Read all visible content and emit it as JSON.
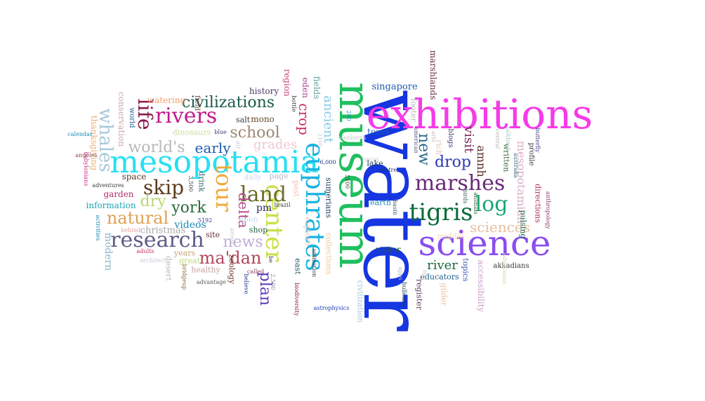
{
  "words": [
    {
      "text": "water",
      "color": "#1536e0"
    },
    {
      "text": "museum",
      "color": "#1fbf5f"
    },
    {
      "text": "exhibitions",
      "color": "#f53be8"
    },
    {
      "text": "science",
      "color": "#8a4df0"
    },
    {
      "text": "mesopotamia",
      "color": "#26e0f2"
    },
    {
      "text": "euphrates",
      "color": "#1ab3e0"
    },
    {
      "text": "center",
      "color": "#c9e047"
    },
    {
      "text": "tour",
      "color": "#f2a93b"
    },
    {
      "text": "tigris",
      "color": "#0a6b3a"
    },
    {
      "text": "marshes",
      "color": "#6a2a7a"
    },
    {
      "text": "rivers",
      "color": "#c21a8a"
    },
    {
      "text": "research",
      "color": "#5c5c8a"
    },
    {
      "text": "land",
      "color": "#6b6b2a"
    },
    {
      "text": "log",
      "color": "#1aa67a"
    },
    {
      "text": "life",
      "color": "#8a1a4a"
    },
    {
      "text": "skip",
      "color": "#5c3a1a"
    },
    {
      "text": "whales",
      "color": "#a8c8d8"
    },
    {
      "text": "civilizations",
      "color": "#1a5a4a"
    },
    {
      "text": "ma'dan",
      "color": "#b3475c"
    },
    {
      "text": "natural",
      "color": "#e0a050"
    },
    {
      "text": "news",
      "color": "#c0b0d8"
    },
    {
      "text": "school",
      "color": "#a08870"
    },
    {
      "text": "world's",
      "color": "#b8b8b8"
    },
    {
      "text": "drop",
      "color": "#2a3ab3"
    },
    {
      "text": "new",
      "color": "#2a6a8a"
    },
    {
      "text": "sciences",
      "color": "#e8c0a0"
    },
    {
      "text": "york",
      "color": "#2a6a3a"
    },
    {
      "text": "dry",
      "color": "#b8d870"
    },
    {
      "text": "early",
      "color": "#1a5ab3"
    },
    {
      "text": "delta",
      "color": "#b3478a"
    },
    {
      "text": "plan",
      "color": "#5a3ab3"
    },
    {
      "text": "ancient",
      "color": "#8ac8e8"
    },
    {
      "text": "crop",
      "color": "#c8306a"
    },
    {
      "text": "grades",
      "color": "#f0c8d0"
    },
    {
      "text": "river",
      "color": "#1a6a3a"
    },
    {
      "text": "visit",
      "color": "#7a2a5a"
    },
    {
      "text": "amnh",
      "color": "#5a2a2a"
    },
    {
      "text": "mesopotamian",
      "color": "#d8b0c8"
    },
    {
      "text": "pm",
      "color": "#2a2a5a"
    },
    {
      "text": "videos",
      "color": "#1a8ab3"
    },
    {
      "text": "christmas",
      "color": "#a8a8a8"
    },
    {
      "text": "modern",
      "color": "#8ab3c8"
    },
    {
      "text": "conservation",
      "color": "#c8a8a8"
    },
    {
      "text": "thanksgiving",
      "color": "#f0b070"
    },
    {
      "text": "information",
      "color": "#1aa6b3"
    },
    {
      "text": "garden",
      "color": "#b3306a"
    },
    {
      "text": "space",
      "color": "#5a3a2a"
    },
    {
      "text": "watering",
      "color": "#f0a070"
    },
    {
      "text": "dinosaurs",
      "color": "#c8e0a0"
    },
    {
      "text": "salt",
      "color": "#3a3a3a"
    },
    {
      "text": "mono",
      "color": "#6a4a2a"
    },
    {
      "text": "history",
      "color": "#4a3a6a"
    },
    {
      "text": "region",
      "color": "#c8407a"
    },
    {
      "text": "eden",
      "color": "#a84090"
    },
    {
      "text": "fields",
      "color": "#60a0a0"
    },
    {
      "text": "singapore",
      "color": "#1a5ab3"
    },
    {
      "text": "tours",
      "color": "#1a5ab3"
    },
    {
      "text": "marshlands",
      "color": "#6a2a4a"
    },
    {
      "text": "footer",
      "color": "#b8b8b8"
    },
    {
      "text": "lake",
      "color": "#1a3a5a"
    },
    {
      "text": "earth",
      "color": "#1a8ab3"
    },
    {
      "text": "middle",
      "color": "#f0d8b0"
    },
    {
      "text": "visitor",
      "color": "#2a5a3a"
    },
    {
      "text": "educators",
      "color": "#1a5a8a"
    },
    {
      "text": "register",
      "color": "#5a3a5a"
    },
    {
      "text": "topics",
      "color": "#3a5ab3"
    },
    {
      "text": "accessibility",
      "color": "#c8a0c8"
    },
    {
      "text": "gilder",
      "color": "#f0c0a0"
    },
    {
      "text": "directions",
      "color": "#b3306a"
    },
    {
      "text": "pulsing",
      "color": "#1a6a4a"
    },
    {
      "text": "written",
      "color": "#3a6a3a"
    },
    {
      "text": "profile",
      "color": "#3a3a3a"
    },
    {
      "text": "blogs",
      "color": "#3a3a6a"
    },
    {
      "text": "rich",
      "color": "#e0c8b0"
    },
    {
      "text": "zoology",
      "color": "#6a3a2a"
    },
    {
      "text": "shop",
      "color": "#1a5a3a"
    },
    {
      "text": "open",
      "color": "#c8d8f0"
    },
    {
      "text": "page",
      "color": "#b8b8c8"
    },
    {
      "text": "daily",
      "color": "#c8d8f0"
    },
    {
      "text": "site",
      "color": "#6a2a2a"
    },
    {
      "text": "drink",
      "color": "#3a6a6a"
    },
    {
      "text": "great",
      "color": "#b8d870"
    },
    {
      "text": "years",
      "color": "#c8a070"
    },
    {
      "text": "healthy",
      "color": "#c8a0a0"
    },
    {
      "text": "desert",
      "color": "#b8b8b8"
    },
    {
      "text": "sumerians",
      "color": "#1a3a5a"
    },
    {
      "text": "collections",
      "color": "#f0c8a0"
    },
    {
      "text": "east",
      "color": "#1a5a6a"
    },
    {
      "text": "explore",
      "color": "#f0c8c8"
    },
    {
      "text": "past",
      "color": "#f0c0b0"
    },
    {
      "text": "civilization",
      "color": "#a8c8d8"
    },
    {
      "text": "field",
      "color": "#6a4a3a"
    },
    {
      "text": "world",
      "color": "#1a5a8a"
    },
    {
      "text": "astrophysics",
      "color": "#1a3ab3"
    },
    {
      "text": "akkadians",
      "color": "#3a3a3a"
    },
    {
      "text": "anthropology",
      "color": "#8a3a6a"
    },
    {
      "text": "butterfly",
      "color": "#3a3a8a"
    },
    {
      "text": "admissions",
      "color": "#c8e0a0"
    },
    {
      "text": "bulletins",
      "color": "#1a3a5a"
    },
    {
      "text": "animals",
      "color": "#3a6a3a"
    },
    {
      "text": "birds",
      "color": "#3a5a5a"
    },
    {
      "text": "basin",
      "color": "#3a5a6a"
    },
    {
      "text": "centre",
      "color": "#1a3a6a"
    },
    {
      "text": "american",
      "color": "#5a5a8a"
    },
    {
      "text": "arts",
      "color": "#c8b8b8"
    },
    {
      "text": "central",
      "color": "#b8b8b8"
    },
    {
      "text": "australia",
      "color": "#3a6a8a"
    },
    {
      "text": "talkback",
      "color": "#a8c8c8"
    },
    {
      "text": "canberra",
      "color": "#c8c8c8"
    },
    {
      "text": "10024",
      "color": "#c8c8c8"
    },
    {
      "text": "5100",
      "color": "#3a3a3a"
    },
    {
      "text": "6,000",
      "color": "#1a3a8a"
    },
    {
      "text": "3,500",
      "color": "#3a3a3a"
    },
    {
      "text": "5192",
      "color": "#3a3a8a"
    },
    {
      "text": "brazil",
      "color": "#3a3a3a"
    },
    {
      "text": "animation",
      "color": "#3a3a3a"
    },
    {
      "text": "biodiversity",
      "color": "#8a1a4a"
    },
    {
      "text": "believe",
      "color": "#1a3a8a"
    },
    {
      "text": "advantage",
      "color": "#5a5a5a"
    },
    {
      "text": "bridgeup",
      "color": "#8a6a3a"
    },
    {
      "text": "architect",
      "color": "#c8c8d8"
    },
    {
      "text": "adults",
      "color": "#c82a6a"
    },
    {
      "text": "behind",
      "color": "#f0a0a0"
    },
    {
      "text": "activities",
      "color": "#1a8ab3"
    },
    {
      "text": "babylonians",
      "color": "#c82a8a"
    },
    {
      "text": "adventures",
      "color": "#3a3a3a"
    },
    {
      "text": "angeles",
      "color": "#8a4a3a"
    },
    {
      "text": "calendar",
      "color": "#1a8ab3"
    },
    {
      "text": "blue",
      "color": "#3a3a6a"
    },
    {
      "text": "air",
      "color": "#c8c8d8"
    },
    {
      "text": "called",
      "color": "#8a3a6a"
    },
    {
      "text": "be",
      "color": "#3a3a3a"
    },
    {
      "text": "apps",
      "color": "#b8b8b8"
    },
    {
      "text": "ago",
      "color": "#c8c8c8"
    },
    {
      "text": "bottle",
      "color": "#3a3a3a"
    },
    {
      "text": "200",
      "color": "#1a8ab3"
    },
    {
      "text": "2100",
      "color": "#c8c8c8"
    },
    {
      "text": "arrow",
      "color": "#c8c8c8"
    },
    {
      "text": "2,500",
      "color": "#8a8a8a"
    }
  ]
}
